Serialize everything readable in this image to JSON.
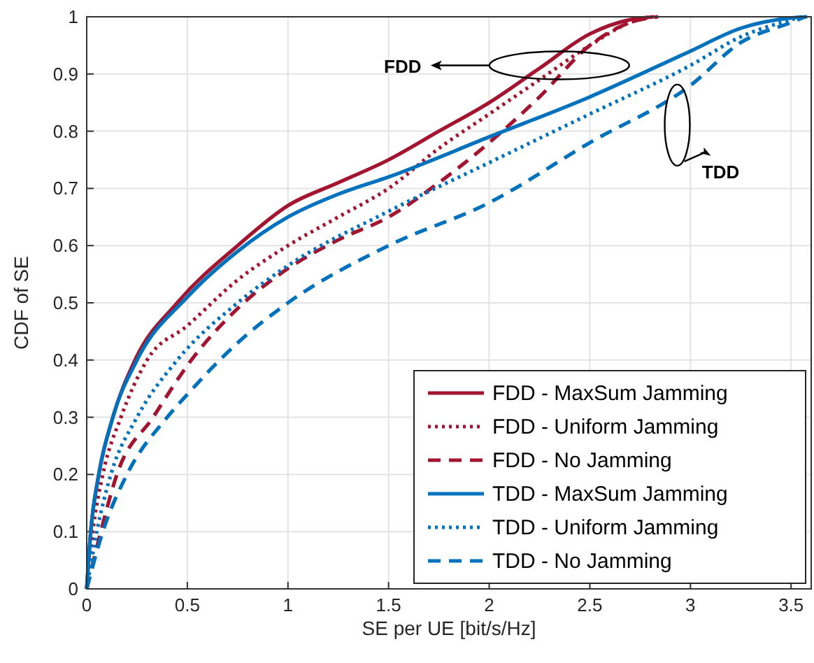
{
  "chart_data": {
    "type": "line",
    "xlabel": "SE per UE [bit/s/Hz]",
    "ylabel": "CDF of SE",
    "xlim": [
      0,
      3.6
    ],
    "ylim": [
      0,
      1
    ],
    "xticks": [
      0,
      0.5,
      1,
      1.5,
      2,
      2.5,
      3,
      3.5
    ],
    "yticks": [
      0,
      0.1,
      0.2,
      0.3,
      0.4,
      0.5,
      0.6,
      0.7,
      0.8,
      0.9,
      1
    ],
    "grid": true,
    "legend": "bottom right",
    "marker": "none",
    "annotations": [
      "FDD",
      "TDD"
    ],
    "series": [
      {
        "name": "FDD - MaxSum Jamming",
        "color": "#a2142f",
        "line_style": "solid",
        "x": [
          0,
          0.02,
          0.06,
          0.13,
          0.24,
          0.45,
          0.75,
          1,
          1.25,
          1.5,
          1.75,
          2,
          2.25,
          2.5,
          2.7,
          2.82
        ],
        "values": [
          0,
          0.1,
          0.2,
          0.3,
          0.4,
          0.5,
          0.6,
          0.67,
          0.71,
          0.75,
          0.8,
          0.85,
          0.91,
          0.97,
          0.995,
          1
        ]
      },
      {
        "name": "FDD - Uniform Jamming",
        "color": "#a2142f",
        "line_style": "dotted",
        "x": [
          0,
          0.03,
          0.08,
          0.17,
          0.3,
          0.5,
          0.75,
          1,
          1.25,
          1.5,
          1.75,
          2,
          2.25,
          2.5,
          2.7,
          2.8
        ],
        "values": [
          0,
          0.1,
          0.2,
          0.3,
          0.4,
          0.46,
          0.54,
          0.6,
          0.65,
          0.7,
          0.77,
          0.83,
          0.89,
          0.95,
          0.99,
          1
        ]
      },
      {
        "name": "FDD - No Jamming",
        "color": "#a2142f",
        "line_style": "dashed",
        "x": [
          0,
          0.07,
          0.15,
          0.33,
          0.52,
          0.75,
          1,
          1.25,
          1.5,
          1.75,
          2,
          2.25,
          2.5,
          2.7,
          2.84
        ],
        "values": [
          0,
          0.1,
          0.2,
          0.3,
          0.4,
          0.49,
          0.56,
          0.61,
          0.65,
          0.71,
          0.78,
          0.86,
          0.95,
          0.99,
          1
        ]
      },
      {
        "name": "TDD - MaxSum Jamming",
        "color": "#0072bd",
        "line_style": "solid",
        "x": [
          0,
          0.02,
          0.06,
          0.13,
          0.25,
          0.5,
          0.75,
          1,
          1.25,
          1.5,
          2,
          2.5,
          3,
          3.25,
          3.5,
          3.58
        ],
        "values": [
          0,
          0.1,
          0.2,
          0.3,
          0.4,
          0.51,
          0.59,
          0.65,
          0.69,
          0.72,
          0.79,
          0.86,
          0.94,
          0.98,
          0.998,
          1
        ]
      },
      {
        "name": "TDD - Uniform Jamming",
        "color": "#0072bd",
        "line_style": "dotted",
        "x": [
          0,
          0.05,
          0.12,
          0.25,
          0.45,
          0.75,
          1,
          1.5,
          2,
          2.5,
          3,
          3.25,
          3.5,
          3.55
        ],
        "values": [
          0,
          0.1,
          0.2,
          0.3,
          0.4,
          0.5,
          0.565,
          0.66,
          0.745,
          0.83,
          0.915,
          0.965,
          0.995,
          1
        ]
      },
      {
        "name": "TDD - No Jamming",
        "color": "#0072bd",
        "line_style": "dashed",
        "x": [
          0,
          0.08,
          0.2,
          0.4,
          0.5,
          0.75,
          1,
          1.5,
          2,
          2.5,
          3,
          3.25,
          3.5,
          3.57
        ],
        "values": [
          0,
          0.1,
          0.2,
          0.3,
          0.34,
          0.43,
          0.5,
          0.6,
          0.675,
          0.78,
          0.88,
          0.955,
          0.99,
          1
        ]
      }
    ]
  }
}
